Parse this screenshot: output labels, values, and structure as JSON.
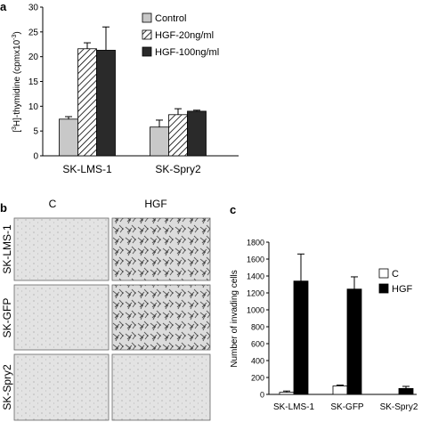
{
  "panels": {
    "a": {
      "label": "a"
    },
    "b": {
      "label": "b",
      "col_labels": [
        "C",
        "HGF"
      ],
      "row_labels": [
        "SK-LMS-1",
        "SK-GFP",
        "SK-Spry2"
      ]
    },
    "c": {
      "label": "c"
    }
  },
  "chart_data": [
    {
      "panel": "a",
      "type": "bar",
      "categories": [
        "SK-LMS-1",
        "SK-Spry2"
      ],
      "series": [
        {
          "name": "Control",
          "values": [
            7.4,
            5.8
          ],
          "errors": [
            0.5,
            1.4
          ],
          "fill": "#c8c8c8"
        },
        {
          "name": "HGF-20ng/ml",
          "values": [
            21.6,
            8.3
          ],
          "errors": [
            1.2,
            1.2
          ],
          "fill": "hatch"
        },
        {
          "name": "HGF-100ng/ml",
          "values": [
            21.3,
            9.0
          ],
          "errors": [
            4.7,
            0.2
          ],
          "fill": "#2a2a2a"
        }
      ],
      "ylabel_parts": [
        "[",
        "3",
        "H]-thymidine (cpmx10",
        "-3",
        ")"
      ],
      "ylim": [
        0,
        30
      ],
      "yticks": [
        "0",
        "5",
        "10",
        "15",
        "20",
        "25",
        "30"
      ],
      "legend": "top-right"
    },
    {
      "panel": "c",
      "type": "bar",
      "categories": [
        "SK-LMS-1",
        "SK-GFP",
        "SK-Spry2"
      ],
      "series": [
        {
          "name": "C",
          "values": [
            25,
            100,
            0
          ],
          "errors": [
            15,
            10,
            0
          ],
          "fill": "#ffffff"
        },
        {
          "name": "HGF",
          "values": [
            1340,
            1245,
            70
          ],
          "errors": [
            320,
            145,
            25
          ],
          "fill": "#000000"
        }
      ],
      "ylabel": "Number of invading cells",
      "ylim": [
        0,
        1800
      ],
      "yticks": [
        "0",
        "200",
        "400",
        "600",
        "800",
        "1000",
        "1200",
        "1400",
        "1600",
        "1800"
      ],
      "legend": "top-right"
    }
  ]
}
